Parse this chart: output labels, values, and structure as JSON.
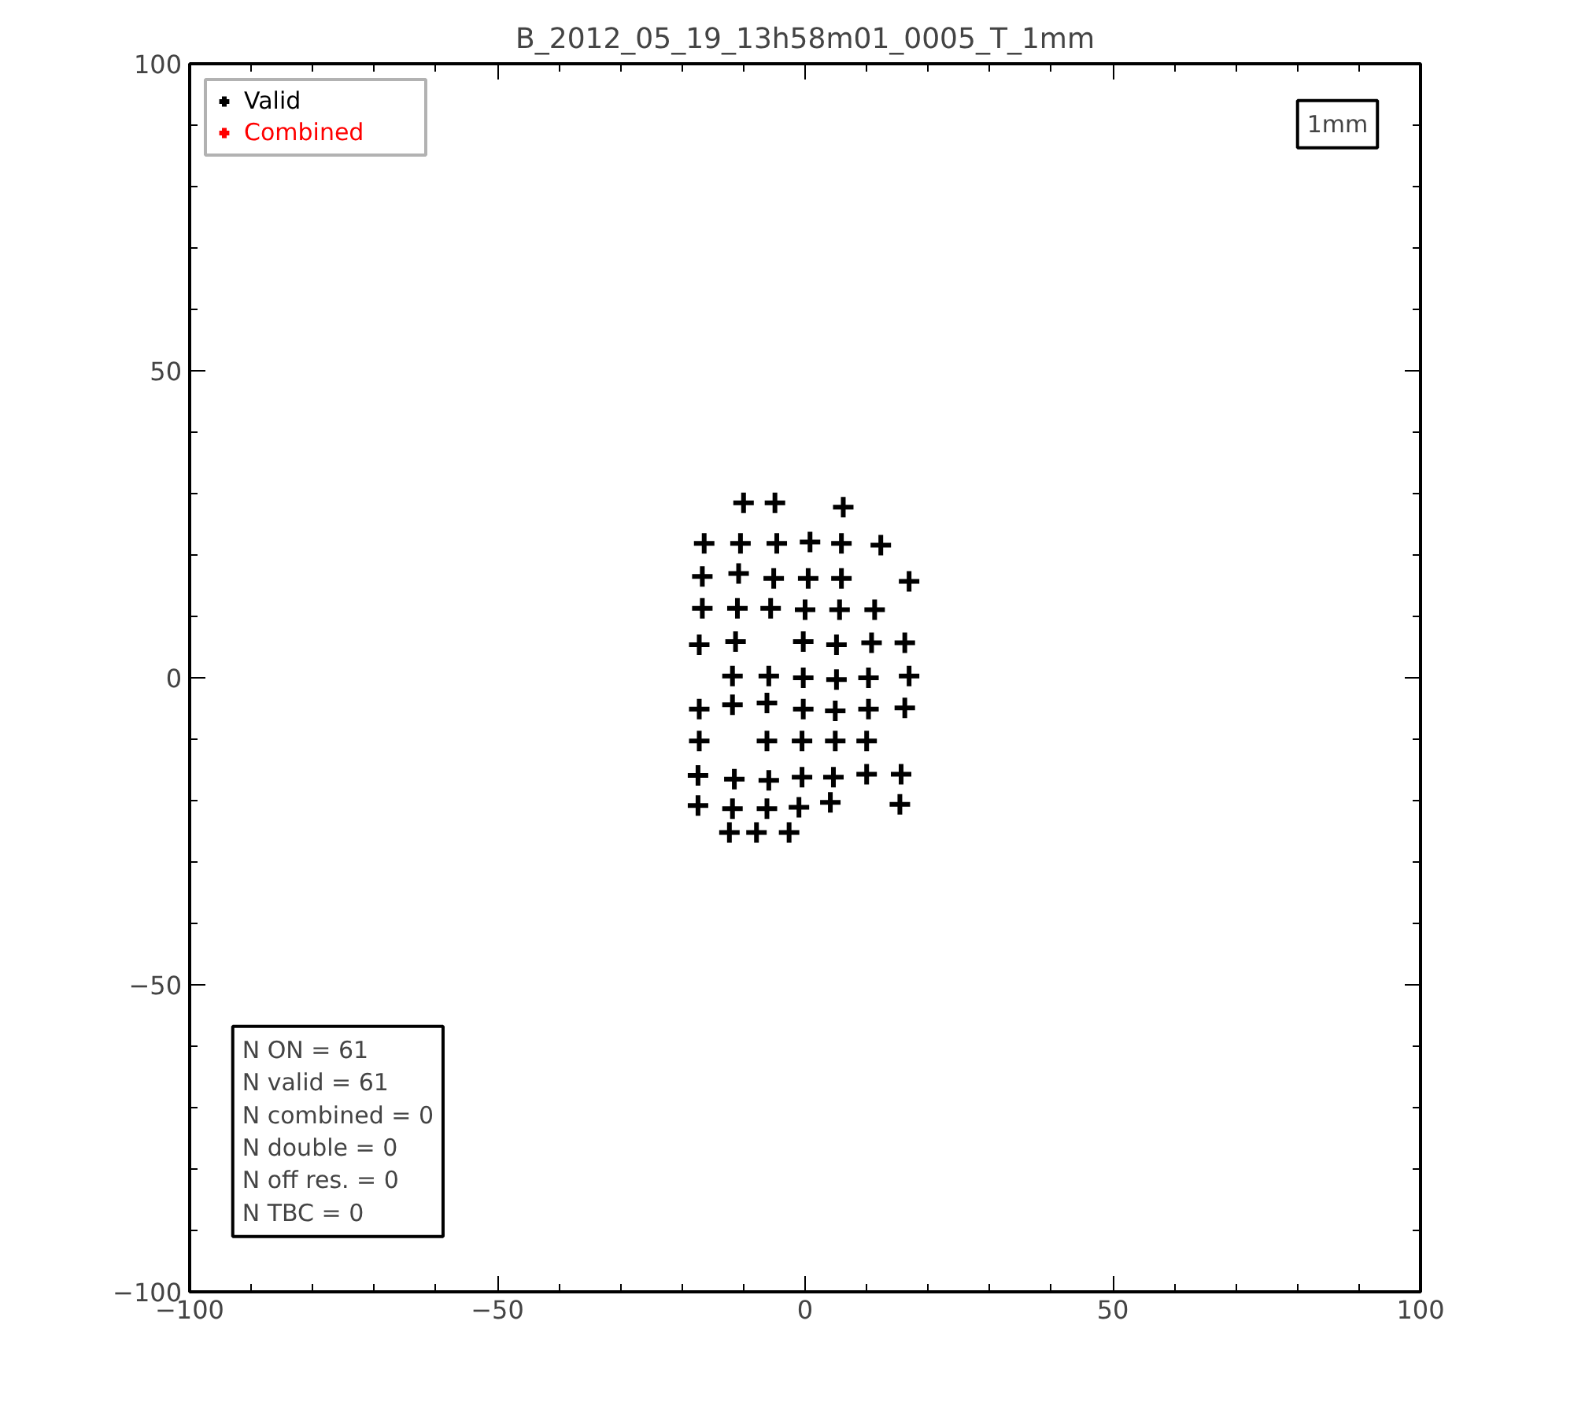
{
  "chart_data": {
    "type": "scatter",
    "title": "B_2012_05_19_13h58m01_0005_T_1mm",
    "xlim": [
      -100,
      100
    ],
    "ylim": [
      -100,
      100
    ],
    "xticks": [
      -100,
      -50,
      0,
      50,
      100
    ],
    "yticks": [
      -100,
      -50,
      0,
      50,
      100
    ],
    "grid": false,
    "legend": "top left",
    "marker": "cross",
    "series": [
      {
        "name": "Valid",
        "color": "#000000",
        "x": [
          -10,
          -4.9,
          6.2,
          -16.4,
          -10.5,
          -4.6,
          0.8,
          5.9,
          12.3,
          -16.7,
          -10.8,
          -5.1,
          0.5,
          5.9,
          16.9,
          -16.7,
          -11,
          -5.6,
          0,
          5.6,
          11.3,
          -17.2,
          -11.3,
          -0.3,
          5.1,
          10.8,
          16.2,
          -11.8,
          -5.9,
          -0.3,
          5.1,
          10.3,
          16.9,
          -17.2,
          -11.8,
          -6.2,
          -0.3,
          4.9,
          10.3,
          16.2,
          -17.2,
          -6.2,
          -0.5,
          4.9,
          10,
          -17.4,
          -11.5,
          -5.9,
          -0.5,
          4.6,
          10,
          15.6,
          -17.4,
          -11.8,
          -6.2,
          -1,
          4.1,
          15.4,
          -12.3,
          -7.9,
          -2.6
        ],
        "values": [
          28.5,
          28.5,
          27.8,
          21.9,
          21.9,
          21.9,
          22.1,
          21.9,
          21.6,
          16.5,
          17,
          16.2,
          16.2,
          16.2,
          15.7,
          11.3,
          11.3,
          11.3,
          11.1,
          11.1,
          11.1,
          5.4,
          5.9,
          5.9,
          5.4,
          5.7,
          5.7,
          0.3,
          0.3,
          0,
          -0.3,
          0,
          0.3,
          -5.1,
          -4.4,
          -4.1,
          -5.1,
          -5.4,
          -5.1,
          -4.9,
          -10.3,
          -10.3,
          -10.3,
          -10.3,
          -10.3,
          -15.9,
          -16.5,
          -16.7,
          -16.2,
          -16.2,
          -15.7,
          -15.7,
          -20.8,
          -21.3,
          -21.3,
          -21.1,
          -20.3,
          -20.6,
          -25.2,
          -25.2,
          -25.2
        ]
      },
      {
        "name": "Combined",
        "color": "#ff0000"
      }
    ],
    "annotations": [
      "1mm",
      "N ON = 61\nN valid = 61\nN combined = 0\nN double = 0\nN off res. = 0\nN TBC = 0"
    ]
  }
}
